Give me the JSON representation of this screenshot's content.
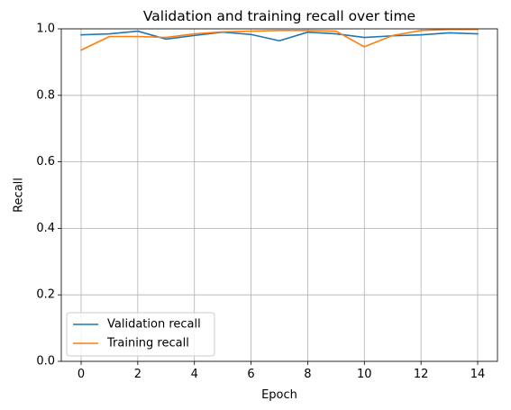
{
  "chart_data": {
    "type": "line",
    "title": "Validation and training recall over time",
    "xlabel": "Epoch",
    "ylabel": "Recall",
    "x": [
      0,
      1,
      2,
      3,
      4,
      5,
      6,
      7,
      8,
      9,
      10,
      11,
      12,
      13,
      14
    ],
    "xlim": [
      -0.7,
      14.7
    ],
    "ylim": [
      0.0,
      1.0
    ],
    "xticks": [
      0,
      2,
      4,
      6,
      8,
      10,
      12,
      14
    ],
    "yticks": [
      0.0,
      0.2,
      0.4,
      0.6,
      0.8,
      1.0
    ],
    "xtick_labels": [
      "0",
      "2",
      "4",
      "6",
      "8",
      "10",
      "12",
      "14"
    ],
    "ytick_labels": [
      "0.0",
      "0.2",
      "0.4",
      "0.6",
      "0.8",
      "1.0"
    ],
    "grid": true,
    "legend_position": "lower-left",
    "series": [
      {
        "name": "Validation recall",
        "color": "#1f77b4",
        "values": [
          0.982,
          0.985,
          0.993,
          0.969,
          0.98,
          0.99,
          0.983,
          0.964,
          0.99,
          0.985,
          0.974,
          0.979,
          0.982,
          0.988,
          0.985
        ]
      },
      {
        "name": "Training recall",
        "color": "#ff7f0e",
        "values": [
          0.936,
          0.977,
          0.977,
          0.974,
          0.985,
          0.991,
          0.993,
          0.995,
          0.995,
          0.993,
          0.946,
          0.98,
          0.995,
          0.998,
          0.998
        ]
      }
    ]
  }
}
